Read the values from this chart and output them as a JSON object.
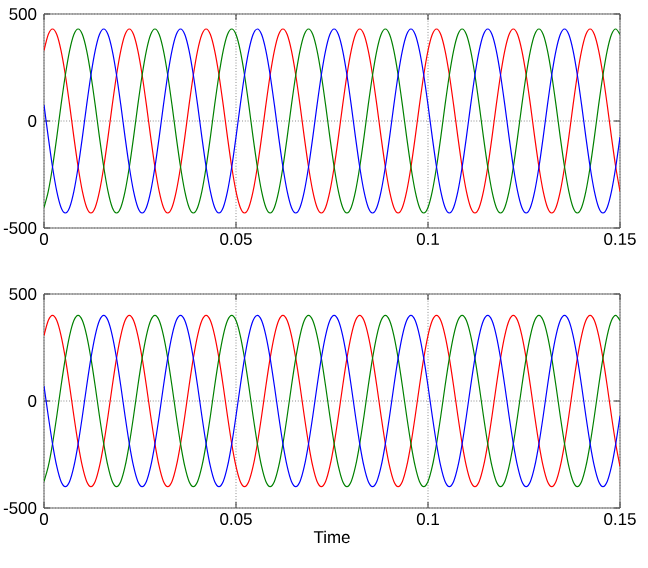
{
  "chart_data": [
    {
      "type": "line",
      "xlim": [
        0,
        0.15
      ],
      "ylim": [
        -500,
        500
      ],
      "xticks": [
        0,
        0.05,
        0.1,
        0.15
      ],
      "yticks": [
        -500,
        0,
        500
      ],
      "grid": true,
      "x": [
        0,
        0.00111,
        0.00222,
        0.00333,
        0.00444,
        0.00556,
        0.00667,
        0.00778,
        0.00889,
        0.01,
        0.01111,
        0.01222,
        0.01333,
        0.01444,
        0.01556,
        0.01667,
        0.01778,
        0.01889,
        0.02,
        0.02111,
        0.02222,
        0.02333,
        0.02444,
        0.02556,
        0.02667,
        0.02778,
        0.02889,
        0.03,
        0.03111,
        0.03222,
        0.03333,
        0.03444,
        0.03556,
        0.03667,
        0.03778,
        0.03889,
        0.04,
        0.04111,
        0.04222,
        0.04333,
        0.04444,
        0.04556,
        0.04667,
        0.04778,
        0.04889,
        0.05,
        0.05111,
        0.05222,
        0.05333,
        0.05444,
        0.05556,
        0.05667,
        0.05778,
        0.05889,
        0.06,
        0.06111,
        0.06222,
        0.06333,
        0.06444,
        0.06556,
        0.06667,
        0.06778,
        0.06889,
        0.07,
        0.07111,
        0.07222,
        0.07333,
        0.07444,
        0.07556,
        0.07667,
        0.07778,
        0.07889,
        0.08,
        0.08111,
        0.08222,
        0.08333,
        0.08444,
        0.08556,
        0.08667,
        0.08778,
        0.08889,
        0.09,
        0.09111,
        0.09222,
        0.09333,
        0.09444,
        0.09556,
        0.09667,
        0.09778,
        0.09889,
        0.1,
        0.10111,
        0.10222,
        0.10333,
        0.10444,
        0.10556,
        0.10667,
        0.10778,
        0.10889,
        0.11,
        0.11111,
        0.11222,
        0.11333,
        0.11444,
        0.11556,
        0.11667,
        0.11778,
        0.11889,
        0.12,
        0.12111,
        0.12222,
        0.12333,
        0.12444,
        0.12556,
        0.12667,
        0.12778,
        0.12889,
        0.13,
        0.13111,
        0.13222,
        0.13333,
        0.13444,
        0.13556,
        0.13667,
        0.13778,
        0.13889,
        0.14,
        0.14111,
        0.14222,
        0.14333,
        0.14444,
        0.14556,
        0.14667,
        0.14778,
        0.14889,
        0.15
      ],
      "series": [
        {
          "color": "#ff0000",
          "values": [
            329,
            404,
            430,
            404,
            329,
            215,
            75,
            -75,
            -215,
            -329,
            -404,
            -430,
            -404,
            -329,
            -215,
            -75,
            75,
            215,
            329,
            404,
            430,
            404,
            329,
            215,
            75,
            -75,
            -215,
            -329,
            -404,
            -430,
            -404,
            -329,
            -215,
            -75,
            75,
            215,
            329,
            404,
            430,
            404,
            329,
            215,
            75,
            -75,
            -215,
            -329,
            -404,
            -430,
            -404,
            -329,
            -215,
            -75,
            75,
            215,
            329,
            404,
            430,
            404,
            329,
            215,
            75,
            -75,
            -215,
            -329,
            -404,
            -430,
            -404,
            -329,
            -215,
            -75,
            75,
            215,
            329,
            404,
            430,
            404,
            329,
            215,
            75,
            -75,
            -215,
            -329,
            -404,
            -430,
            -404,
            -329,
            -215,
            -75,
            75,
            215,
            329,
            404,
            430,
            404,
            329,
            215,
            75,
            -75,
            -215,
            -329,
            -404,
            -430,
            -404,
            -329,
            -215,
            -75,
            75,
            215,
            329,
            404,
            430,
            404,
            329,
            215,
            75,
            -75,
            -215,
            -329,
            -404,
            -430,
            -404,
            -329,
            -215,
            -75,
            75,
            215,
            329,
            404,
            430,
            404,
            329,
            215,
            75,
            -75,
            -215,
            -329
          ]
        },
        {
          "color": "#008000",
          "values": [
            -404,
            -329,
            -215,
            -75,
            75,
            215,
            329,
            404,
            430,
            404,
            329,
            215,
            75,
            -75,
            -215,
            -329,
            -404,
            -430,
            -404,
            -329,
            -215,
            -75,
            75,
            215,
            329,
            404,
            430,
            404,
            329,
            215,
            75,
            -75,
            -215,
            -329,
            -404,
            -430,
            -404,
            -329,
            -215,
            -75,
            75,
            215,
            329,
            404,
            430,
            404,
            329,
            215,
            75,
            -75,
            -215,
            -329,
            -404,
            -430,
            -404,
            -329,
            -215,
            -75,
            75,
            215,
            329,
            404,
            430,
            404,
            329,
            215,
            75,
            -75,
            -215,
            -329,
            -404,
            -430,
            -404,
            -329,
            -215,
            -75,
            75,
            215,
            329,
            404,
            430,
            404,
            329,
            215,
            75,
            -75,
            -215,
            -329,
            -404,
            -430,
            -404,
            -329,
            -215,
            -75,
            75,
            215,
            329,
            404,
            430,
            404,
            329,
            215,
            75,
            -75,
            -215,
            -329,
            -404,
            -430,
            -404,
            -329,
            -215,
            -75,
            75,
            215,
            329,
            404,
            430,
            404,
            329,
            215,
            75,
            -75,
            -215,
            -329,
            -404,
            -430,
            -404,
            -329,
            -215,
            -75,
            75,
            215,
            329,
            404,
            430,
            404
          ]
        },
        {
          "color": "#0000ff",
          "values": [
            75,
            -75,
            -215,
            -329,
            -404,
            -430,
            -404,
            -329,
            -215,
            -75,
            75,
            215,
            329,
            404,
            430,
            404,
            329,
            215,
            75,
            -75,
            -215,
            -329,
            -404,
            -430,
            -404,
            -329,
            -215,
            -75,
            75,
            215,
            329,
            404,
            430,
            404,
            329,
            215,
            75,
            -75,
            -215,
            -329,
            -404,
            -430,
            -404,
            -329,
            -215,
            -75,
            75,
            215,
            329,
            404,
            430,
            404,
            329,
            215,
            75,
            -75,
            -215,
            -329,
            -404,
            -430,
            -404,
            -329,
            -215,
            -75,
            75,
            215,
            329,
            404,
            430,
            404,
            329,
            215,
            75,
            -75,
            -215,
            -329,
            -404,
            -430,
            -404,
            -329,
            -215,
            -75,
            75,
            215,
            329,
            404,
            430,
            404,
            329,
            215,
            75,
            -75,
            -215,
            -329,
            -404,
            -430,
            -404,
            -329,
            -215,
            -75,
            75,
            215,
            329,
            404,
            430,
            404,
            329,
            215,
            75,
            -75,
            -215,
            -329,
            -404,
            -430,
            -404,
            -329,
            -215,
            -75,
            75,
            215,
            329,
            404,
            430,
            404,
            329,
            215,
            75,
            -75,
            -215,
            -329,
            -404,
            -430,
            -404,
            -329,
            -215,
            -75
          ]
        }
      ]
    },
    {
      "type": "line",
      "xlabel": "Time",
      "xlim": [
        0,
        0.15
      ],
      "ylim": [
        -500,
        500
      ],
      "xticks": [
        0,
        0.05,
        0.1,
        0.15
      ],
      "yticks": [
        -500,
        0,
        500
      ],
      "grid": true,
      "x": [
        0,
        0.00111,
        0.00222,
        0.00333,
        0.00444,
        0.00556,
        0.00667,
        0.00778,
        0.00889,
        0.01,
        0.01111,
        0.01222,
        0.01333,
        0.01444,
        0.01556,
        0.01667,
        0.01778,
        0.01889,
        0.02,
        0.02111,
        0.02222,
        0.02333,
        0.02444,
        0.02556,
        0.02667,
        0.02778,
        0.02889,
        0.03,
        0.03111,
        0.03222,
        0.03333,
        0.03444,
        0.03556,
        0.03667,
        0.03778,
        0.03889,
        0.04,
        0.04111,
        0.04222,
        0.04333,
        0.04444,
        0.04556,
        0.04667,
        0.04778,
        0.04889,
        0.05,
        0.05111,
        0.05222,
        0.05333,
        0.05444,
        0.05556,
        0.05667,
        0.05778,
        0.05889,
        0.06,
        0.06111,
        0.06222,
        0.06333,
        0.06444,
        0.06556,
        0.06667,
        0.06778,
        0.06889,
        0.07,
        0.07111,
        0.07222,
        0.07333,
        0.07444,
        0.07556,
        0.07667,
        0.07778,
        0.07889,
        0.08,
        0.08111,
        0.08222,
        0.08333,
        0.08444,
        0.08556,
        0.08667,
        0.08778,
        0.08889,
        0.09,
        0.09111,
        0.09222,
        0.09333,
        0.09444,
        0.09556,
        0.09667,
        0.09778,
        0.09889,
        0.1,
        0.10111,
        0.10222,
        0.10333,
        0.10444,
        0.10556,
        0.10667,
        0.10778,
        0.10889,
        0.11,
        0.11111,
        0.11222,
        0.11333,
        0.11444,
        0.11556,
        0.11667,
        0.11778,
        0.11889,
        0.12,
        0.12111,
        0.12222,
        0.12333,
        0.12444,
        0.12556,
        0.12667,
        0.12778,
        0.12889,
        0.13,
        0.13111,
        0.13222,
        0.13333,
        0.13444,
        0.13556,
        0.13667,
        0.13778,
        0.13889,
        0.14,
        0.14111,
        0.14222,
        0.14333,
        0.14444,
        0.14556,
        0.14667,
        0.14778,
        0.14889,
        0.15
      ],
      "series": [
        {
          "color": "#ff0000",
          "values": [
            306,
            376,
            400,
            376,
            306,
            200,
            70,
            -70,
            -200,
            -306,
            -376,
            -400,
            -376,
            -306,
            -200,
            -70,
            70,
            200,
            306,
            376,
            400,
            376,
            306,
            200,
            70,
            -70,
            -200,
            -306,
            -376,
            -400,
            -376,
            -306,
            -200,
            -70,
            70,
            200,
            306,
            376,
            400,
            376,
            306,
            200,
            70,
            -70,
            -200,
            -306,
            -376,
            -400,
            -376,
            -306,
            -200,
            -70,
            70,
            200,
            306,
            376,
            400,
            376,
            306,
            200,
            70,
            -70,
            -200,
            -306,
            -376,
            -400,
            -376,
            -306,
            -200,
            -70,
            70,
            200,
            306,
            376,
            400,
            376,
            306,
            200,
            70,
            -70,
            -200,
            -306,
            -376,
            -400,
            -376,
            -306,
            -200,
            -70,
            70,
            200,
            306,
            376,
            400,
            376,
            306,
            200,
            70,
            -70,
            -200,
            -306,
            -376,
            -400,
            -376,
            -306,
            -200,
            -70,
            70,
            200,
            306,
            376,
            400,
            376,
            306,
            200,
            70,
            -70,
            -200,
            -306,
            -376,
            -400,
            -376,
            -306,
            -200,
            -70,
            70,
            200,
            306,
            376,
            400,
            376,
            306,
            200,
            70,
            -70,
            -200,
            -306
          ]
        },
        {
          "color": "#008000",
          "values": [
            -376,
            -306,
            -200,
            -70,
            70,
            200,
            306,
            376,
            400,
            376,
            306,
            200,
            70,
            -70,
            -200,
            -306,
            -376,
            -400,
            -376,
            -306,
            -200,
            -70,
            70,
            200,
            306,
            376,
            400,
            376,
            306,
            200,
            70,
            -70,
            -200,
            -306,
            -376,
            -400,
            -376,
            -306,
            -200,
            -70,
            70,
            200,
            306,
            376,
            400,
            376,
            306,
            200,
            70,
            -70,
            -200,
            -306,
            -376,
            -400,
            -376,
            -306,
            -200,
            -70,
            70,
            200,
            306,
            376,
            400,
            376,
            306,
            200,
            70,
            -70,
            -200,
            -306,
            -376,
            -400,
            -376,
            -306,
            -200,
            -70,
            70,
            200,
            306,
            376,
            400,
            376,
            306,
            200,
            70,
            -70,
            -200,
            -306,
            -376,
            -400,
            -376,
            -306,
            -200,
            -70,
            70,
            200,
            306,
            376,
            400,
            376,
            306,
            200,
            70,
            -70,
            -200,
            -306,
            -376,
            -400,
            -376,
            -306,
            -200,
            -70,
            70,
            200,
            306,
            376,
            400,
            376,
            306,
            200,
            70,
            -70,
            -200,
            -306,
            -376,
            -400,
            -376,
            -306,
            -200,
            -70,
            70,
            200,
            306,
            376,
            400,
            376
          ]
        },
        {
          "color": "#0000ff",
          "values": [
            70,
            -70,
            -200,
            -306,
            -376,
            -400,
            -376,
            -306,
            -200,
            -70,
            70,
            200,
            306,
            376,
            400,
            376,
            306,
            200,
            70,
            -70,
            -200,
            -306,
            -376,
            -400,
            -376,
            -306,
            -200,
            -70,
            70,
            200,
            306,
            376,
            400,
            376,
            306,
            200,
            70,
            -70,
            -200,
            -306,
            -376,
            -400,
            -376,
            -306,
            -200,
            -70,
            70,
            200,
            306,
            376,
            400,
            376,
            306,
            200,
            70,
            -70,
            -200,
            -306,
            -376,
            -400,
            -376,
            -306,
            -200,
            -70,
            70,
            200,
            306,
            376,
            400,
            376,
            306,
            200,
            70,
            -70,
            -200,
            -306,
            -376,
            -400,
            -376,
            -306,
            -200,
            -70,
            70,
            200,
            306,
            376,
            400,
            376,
            306,
            200,
            70,
            -70,
            -200,
            -306,
            -376,
            -400,
            -376,
            -306,
            -200,
            -70,
            70,
            200,
            306,
            376,
            400,
            376,
            306,
            200,
            70,
            -70,
            -200,
            -306,
            -376,
            -400,
            -376,
            -306,
            -200,
            -70,
            70,
            200,
            306,
            376,
            400,
            376,
            306,
            200,
            70,
            -70,
            -200,
            -306,
            -376,
            -400,
            -376,
            -306,
            -200,
            -70
          ]
        }
      ]
    }
  ]
}
